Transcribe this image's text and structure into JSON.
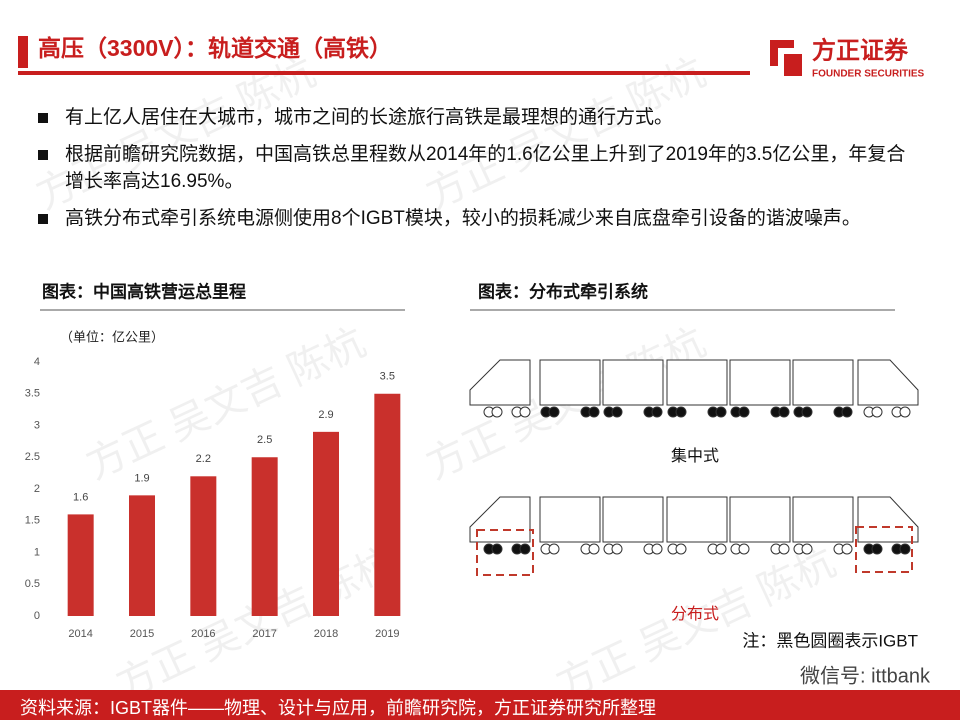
{
  "header": {
    "title": "高压（3300V）：轨道交通（高铁）",
    "logo": "方正证券",
    "logo_sub": "FOUNDER SECURITIES"
  },
  "bullets": [
    "有上亿人居住在大城市，城市之间的长途旅行高铁是最理想的通行方式。",
    "根据前瞻研究院数据，中国高铁总里程数从2014年的1.6亿公里上升到了2019年的3.5亿公里，年复合增长率高达16.95%。",
    "高铁分布式牵引系统电源侧使用8个IGBT模块，较小的损耗减少来自底盘牵引设备的谐波噪声。"
  ],
  "chart_data": {
    "type": "bar",
    "title": "图表：中国高铁营运总里程",
    "unit": "（单位：亿公里）",
    "categories": [
      "2014",
      "2015",
      "2016",
      "2017",
      "2018",
      "2019"
    ],
    "values": [
      1.6,
      1.9,
      2.2,
      2.5,
      2.9,
      3.5
    ],
    "color": "#c9302c",
    "ylim": [
      0,
      4
    ],
    "yticks": [
      0,
      0.5,
      1,
      1.5,
      2,
      2.5,
      3,
      3.5,
      4
    ],
    "grid": false
  },
  "diagram": {
    "title": "图表：分布式牵引系统",
    "label_top": "集中式",
    "label_bottom": "分布式",
    "note": "注：黑色圆圈表示IGBT"
  },
  "watermark": "方正 吴文吉 陈杭",
  "wechat": "微信号: ittbank",
  "source": "资料来源：IGBT器件——物理、设计与应用，前瞻研究院，方正证券研究所整理"
}
